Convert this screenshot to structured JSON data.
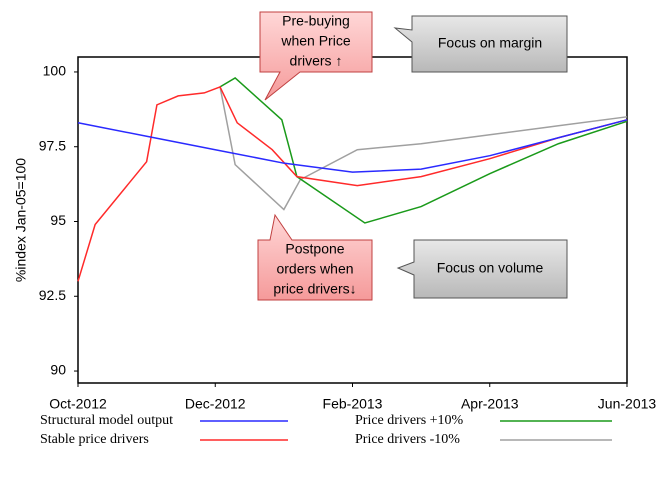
{
  "chart_data": {
    "type": "line",
    "y_label": "%index Jan-05=100",
    "xlim": [
      0,
      8
    ],
    "ylim": [
      89.6,
      100.5
    ],
    "xticks": [
      {
        "value": 0,
        "label": "Oct-2012"
      },
      {
        "value": 2,
        "label": "Dec-2012"
      },
      {
        "value": 4,
        "label": "Feb-2013"
      },
      {
        "value": 6,
        "label": "Apr-2013"
      },
      {
        "value": 8,
        "label": "Jun-2013"
      }
    ],
    "yticks": [
      90,
      92.5,
      95,
      97.5,
      100
    ],
    "series": [
      {
        "name": "Structural model output",
        "color": "#2a2aff",
        "x": [
          0,
          1,
          2,
          3,
          4,
          5,
          6,
          7,
          8
        ],
        "values": [
          98.3,
          97.85,
          97.4,
          96.95,
          96.65,
          96.75,
          97.2,
          97.8,
          98.4
        ]
      },
      {
        "name": "Stable price drivers",
        "color": "#ff2a2a",
        "x": [
          0,
          0.25,
          1,
          1.15,
          1.46,
          1.84,
          2.07,
          2.32,
          2.83,
          3.19,
          4.07,
          5,
          6,
          7,
          8
        ],
        "values": [
          93.0,
          94.9,
          97.0,
          98.9,
          99.2,
          99.3,
          99.5,
          98.3,
          97.4,
          96.5,
          96.2,
          96.5,
          97.1,
          97.8,
          98.4
        ]
      },
      {
        "name": "Price drivers +10%",
        "color": "#1a9a1a",
        "x": [
          2.07,
          2.29,
          2.97,
          3.19,
          4.18,
          5,
          6,
          7,
          8
        ],
        "values": [
          99.5,
          99.8,
          98.4,
          96.5,
          94.95,
          95.5,
          96.6,
          97.6,
          98.35
        ]
      },
      {
        "name": "Price drivers -10%",
        "color": "#a0a0a0",
        "x": [
          2.07,
          2.29,
          3.0,
          3.24,
          4.07,
          5,
          6,
          7,
          8
        ],
        "values": [
          99.5,
          96.9,
          95.4,
          96.4,
          97.4,
          97.6,
          97.9,
          98.2,
          98.5
        ]
      }
    ],
    "annotations": [
      {
        "lines": [
          "Pre-buying",
          "when Price",
          "drivers ↑"
        ]
      },
      {
        "lines": [
          "Focus on margin"
        ]
      },
      {
        "lines": [
          "Postpone",
          "orders when",
          "price drivers↓"
        ]
      },
      {
        "lines": [
          "Focus on volume"
        ]
      }
    ]
  }
}
